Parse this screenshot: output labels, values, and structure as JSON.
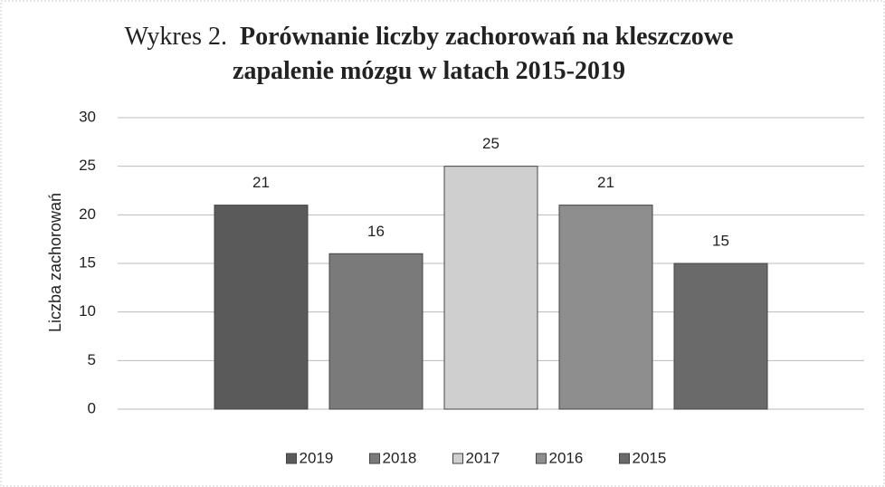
{
  "chart_data": {
    "type": "bar",
    "title_label": "Wykres 2.",
    "title": "Porównanie liczby zachorowań na kleszczowe zapalenie mózgu w latach 2015-2019",
    "y_label": "Liczba zachorowań",
    "series": [
      {
        "name": "2019",
        "color": "#5a5a5a",
        "values": [
          21
        ]
      },
      {
        "name": "2018",
        "color": "#7a7a7a",
        "values": [
          16
        ]
      },
      {
        "name": "2017",
        "color": "#cfcfcf",
        "values": [
          25
        ]
      },
      {
        "name": "2016",
        "color": "#8e8e8e",
        "values": [
          21
        ]
      },
      {
        "name": "2015",
        "color": "#6a6a6a",
        "values": [
          15
        ]
      }
    ],
    "ylim": [
      0,
      30
    ],
    "yticks": [
      0,
      5,
      10,
      15,
      20,
      25,
      30
    ],
    "grid": true,
    "legend": "bottom"
  }
}
